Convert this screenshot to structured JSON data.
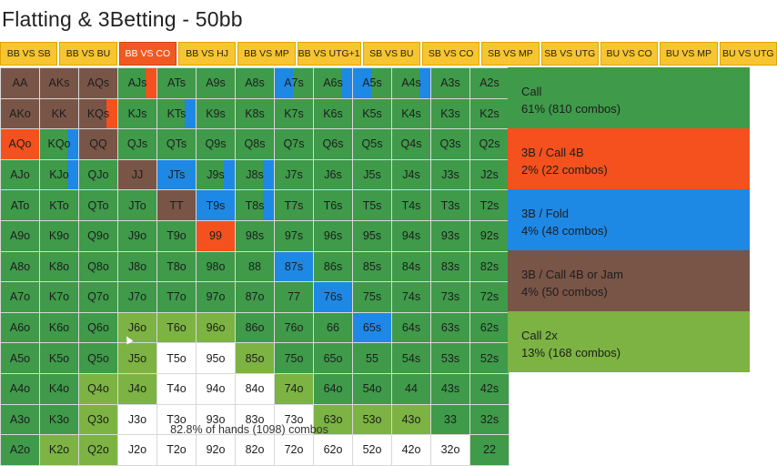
{
  "title": "Flatting & 3Betting - 50bb",
  "tabs": [
    {
      "label": "BB VS SB",
      "active": false
    },
    {
      "label": "BB VS BU",
      "active": false
    },
    {
      "label": "BB VS CO",
      "active": true
    },
    {
      "label": "BB VS HJ",
      "active": false
    },
    {
      "label": "BB VS MP",
      "active": false
    },
    {
      "label": "BB VS UTG+1",
      "active": false
    },
    {
      "label": "SB VS BU",
      "active": false
    },
    {
      "label": "SB VS CO",
      "active": false
    },
    {
      "label": "SB VS MP",
      "active": false
    },
    {
      "label": "SB VS UTG",
      "active": false
    },
    {
      "label": "BU VS CO",
      "active": false
    },
    {
      "label": "BU VS MP",
      "active": false
    },
    {
      "label": "BU VS UTG",
      "active": false
    }
  ],
  "colors": {
    "call": "#3f9a4a",
    "call_4b": "#f4511e",
    "fold": "#1e88e5",
    "jam": "#795548",
    "call2x": "#7cb342",
    "fold_range": "#ffffff",
    "tab": "#f7c531",
    "tab_active": "#f05a22"
  },
  "grid": {
    "rows": [
      [
        [
          "AA",
          "br"
        ],
        [
          "AKs",
          "br"
        ],
        [
          "AQs",
          "br"
        ],
        [
          "AJs",
          "g",
          "rd-r"
        ],
        [
          "ATs",
          "g"
        ],
        [
          "A9s",
          "g"
        ],
        [
          "A8s",
          "g"
        ],
        [
          "A7s",
          "g",
          "bl-lw"
        ],
        [
          "A6s",
          "g",
          "bl-r"
        ],
        [
          "A5s",
          "g",
          "bl-lw"
        ],
        [
          "A4s",
          "g",
          "bl-r"
        ],
        [
          "A3s",
          "g"
        ],
        [
          "A2s",
          "g"
        ]
      ],
      [
        [
          "AKo",
          "br"
        ],
        [
          "KK",
          "br"
        ],
        [
          "KQs",
          "br",
          "rd-r"
        ],
        [
          "KJs",
          "g"
        ],
        [
          "KTs",
          "g",
          "bl-r"
        ],
        [
          "K9s",
          "g"
        ],
        [
          "K8s",
          "g"
        ],
        [
          "K7s",
          "g"
        ],
        [
          "K6s",
          "g"
        ],
        [
          "K5s",
          "g"
        ],
        [
          "K4s",
          "g"
        ],
        [
          "K3s",
          "g"
        ],
        [
          "K2s",
          "g"
        ]
      ],
      [
        [
          "AQo",
          "rd"
        ],
        [
          "KQo",
          "g",
          "bl-r"
        ],
        [
          "QQ",
          "br"
        ],
        [
          "QJs",
          "g"
        ],
        [
          "QTs",
          "g"
        ],
        [
          "Q9s",
          "g"
        ],
        [
          "Q8s",
          "g"
        ],
        [
          "Q7s",
          "g"
        ],
        [
          "Q6s",
          "g"
        ],
        [
          "Q5s",
          "g"
        ],
        [
          "Q4s",
          "g"
        ],
        [
          "Q3s",
          "g"
        ],
        [
          "Q2s",
          "g"
        ]
      ],
      [
        [
          "AJo",
          "g"
        ],
        [
          "KJo",
          "g",
          "bl-r"
        ],
        [
          "QJo",
          "g"
        ],
        [
          "JJ",
          "br"
        ],
        [
          "JTs",
          "bl"
        ],
        [
          "J9s",
          "g",
          "bl-r"
        ],
        [
          "J8s",
          "g",
          "bl-r"
        ],
        [
          "J7s",
          "g"
        ],
        [
          "J6s",
          "g"
        ],
        [
          "J5s",
          "g"
        ],
        [
          "J4s",
          "g"
        ],
        [
          "J3s",
          "g"
        ],
        [
          "J2s",
          "g"
        ]
      ],
      [
        [
          "ATo",
          "g"
        ],
        [
          "KTo",
          "g"
        ],
        [
          "QTo",
          "g"
        ],
        [
          "JTo",
          "g"
        ],
        [
          "TT",
          "br"
        ],
        [
          "T9s",
          "bl"
        ],
        [
          "T8s",
          "g",
          "bl-r"
        ],
        [
          "T7s",
          "g"
        ],
        [
          "T6s",
          "g"
        ],
        [
          "T5s",
          "g"
        ],
        [
          "T4s",
          "g"
        ],
        [
          "T3s",
          "g"
        ],
        [
          "T2s",
          "g"
        ]
      ],
      [
        [
          "A9o",
          "g"
        ],
        [
          "K9o",
          "g"
        ],
        [
          "Q9o",
          "g"
        ],
        [
          "J9o",
          "g"
        ],
        [
          "T9o",
          "g"
        ],
        [
          "99",
          "rd"
        ],
        [
          "98s",
          "g"
        ],
        [
          "97s",
          "g"
        ],
        [
          "96s",
          "g"
        ],
        [
          "95s",
          "g"
        ],
        [
          "94s",
          "g"
        ],
        [
          "93s",
          "g"
        ],
        [
          "92s",
          "g"
        ]
      ],
      [
        [
          "A8o",
          "g"
        ],
        [
          "K8o",
          "g"
        ],
        [
          "Q8o",
          "g"
        ],
        [
          "J8o",
          "g"
        ],
        [
          "T8o",
          "g"
        ],
        [
          "98o",
          "g"
        ],
        [
          "88",
          "g"
        ],
        [
          "87s",
          "bl"
        ],
        [
          "86s",
          "g"
        ],
        [
          "85s",
          "g"
        ],
        [
          "84s",
          "g"
        ],
        [
          "83s",
          "g"
        ],
        [
          "82s",
          "g"
        ]
      ],
      [
        [
          "A7o",
          "g"
        ],
        [
          "K7o",
          "g"
        ],
        [
          "Q7o",
          "g"
        ],
        [
          "J7o",
          "g"
        ],
        [
          "T7o",
          "g"
        ],
        [
          "97o",
          "g"
        ],
        [
          "87o",
          "g"
        ],
        [
          "77",
          "g"
        ],
        [
          "76s",
          "bl"
        ],
        [
          "75s",
          "g"
        ],
        [
          "74s",
          "g"
        ],
        [
          "73s",
          "g"
        ],
        [
          "72s",
          "g"
        ]
      ],
      [
        [
          "A6o",
          "g"
        ],
        [
          "K6o",
          "g"
        ],
        [
          "Q6o",
          "g"
        ],
        [
          "J6o",
          "lg"
        ],
        [
          "T6o",
          "lg"
        ],
        [
          "96o",
          "lg"
        ],
        [
          "86o",
          "g"
        ],
        [
          "76o",
          "g"
        ],
        [
          "66",
          "g"
        ],
        [
          "65s",
          "bl"
        ],
        [
          "64s",
          "g"
        ],
        [
          "63s",
          "g"
        ],
        [
          "62s",
          "g"
        ]
      ],
      [
        [
          "A5o",
          "g"
        ],
        [
          "K5o",
          "g"
        ],
        [
          "Q5o",
          "g"
        ],
        [
          "J5o",
          "lg"
        ],
        [
          "T5o",
          "w"
        ],
        [
          "95o",
          "w"
        ],
        [
          "85o",
          "lg"
        ],
        [
          "75o",
          "g"
        ],
        [
          "65o",
          "g"
        ],
        [
          "55",
          "g"
        ],
        [
          "54s",
          "g"
        ],
        [
          "53s",
          "g"
        ],
        [
          "52s",
          "g"
        ]
      ],
      [
        [
          "A4o",
          "g"
        ],
        [
          "K4o",
          "g"
        ],
        [
          "Q4o",
          "lg"
        ],
        [
          "J4o",
          "lg"
        ],
        [
          "T4o",
          "w"
        ],
        [
          "94o",
          "w"
        ],
        [
          "84o",
          "w"
        ],
        [
          "74o",
          "lg"
        ],
        [
          "64o",
          "g"
        ],
        [
          "54o",
          "g"
        ],
        [
          "44",
          "g"
        ],
        [
          "43s",
          "g"
        ],
        [
          "42s",
          "g"
        ]
      ],
      [
        [
          "A3o",
          "g"
        ],
        [
          "K3o",
          "g"
        ],
        [
          "Q3o",
          "lg"
        ],
        [
          "J3o",
          "w"
        ],
        [
          "T3o",
          "w"
        ],
        [
          "93o",
          "w"
        ],
        [
          "83o",
          "w"
        ],
        [
          "73o",
          "w"
        ],
        [
          "63o",
          "lg"
        ],
        [
          "53o",
          "lg"
        ],
        [
          "43o",
          "lg"
        ],
        [
          "33",
          "g"
        ],
        [
          "32s",
          "g"
        ]
      ],
      [
        [
          "A2o",
          "g"
        ],
        [
          "K2o",
          "lg"
        ],
        [
          "Q2o",
          "lg"
        ],
        [
          "J2o",
          "w"
        ],
        [
          "T2o",
          "w"
        ],
        [
          "92o",
          "w"
        ],
        [
          "82o",
          "w"
        ],
        [
          "72o",
          "w"
        ],
        [
          "62o",
          "w"
        ],
        [
          "52o",
          "w"
        ],
        [
          "42o",
          "w"
        ],
        [
          "32o",
          "w"
        ],
        [
          "22",
          "g"
        ]
      ]
    ],
    "footer": "82.8% of hands (1098) combos"
  },
  "legend": [
    {
      "name": "Call",
      "stat": "61% (810 combos)",
      "color": "#3f9a4a"
    },
    {
      "name": "3B / Call 4B",
      "stat": "2% (22 combos)",
      "color": "#f4511e"
    },
    {
      "name": "3B / Fold",
      "stat": "4% (48 combos)",
      "color": "#1e88e5"
    },
    {
      "name": "3B / Call 4B or Jam",
      "stat": "4% (50 combos)",
      "color": "#795548"
    },
    {
      "name": "Call 2x",
      "stat": "13% (168 combos)",
      "color": "#7cb342"
    }
  ]
}
